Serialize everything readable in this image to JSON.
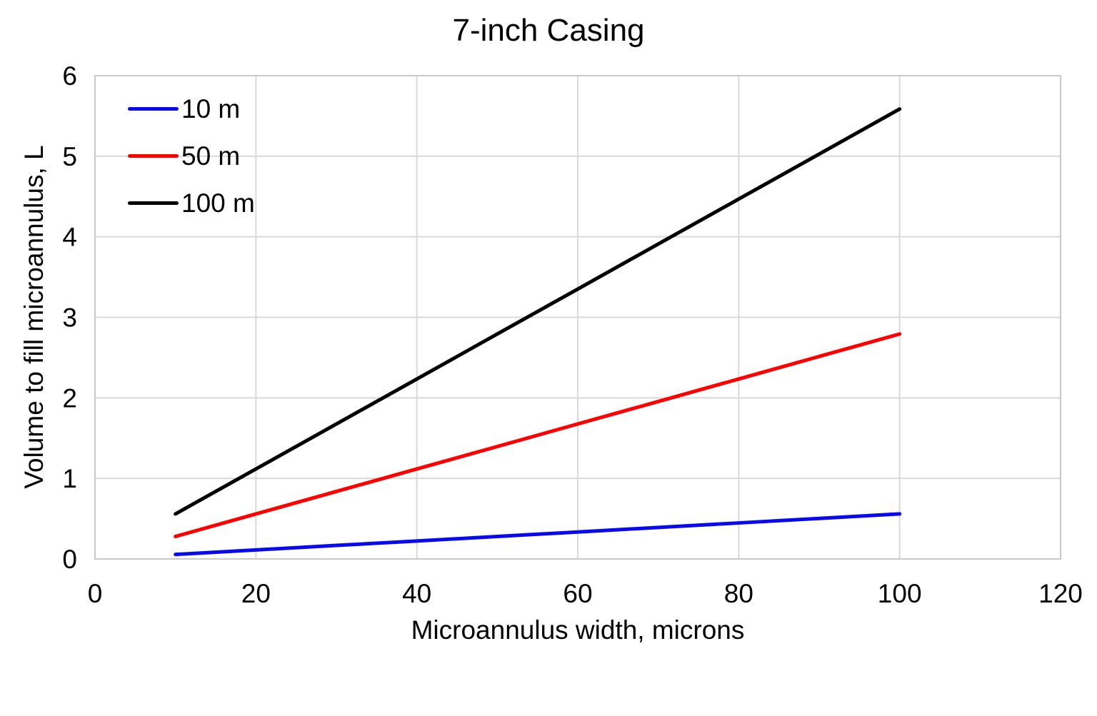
{
  "chart_data": {
    "type": "line",
    "title": "7-inch Casing",
    "xlabel": "Microannulus width, microns",
    "ylabel": "Volume to fill microannulus, L",
    "xlim": [
      0,
      120
    ],
    "ylim": [
      0,
      6
    ],
    "x_ticks": [
      0,
      20,
      40,
      60,
      80,
      100,
      120
    ],
    "y_ticks": [
      0,
      1,
      2,
      3,
      4,
      5,
      6
    ],
    "grid": true,
    "legend_position": "inside-top-left",
    "x": [
      10,
      20,
      30,
      40,
      50,
      60,
      70,
      80,
      90,
      100
    ],
    "series": [
      {
        "name": "10 m",
        "color": "#0909ee",
        "values": [
          0.056,
          0.112,
          0.168,
          0.223,
          0.279,
          0.335,
          0.391,
          0.447,
          0.503,
          0.559
        ]
      },
      {
        "name": "50 m",
        "color": "#fe0000",
        "values": [
          0.279,
          0.559,
          0.838,
          1.117,
          1.396,
          1.676,
          1.955,
          2.234,
          2.514,
          2.793
        ]
      },
      {
        "name": "100 m",
        "color": "#000000",
        "values": [
          0.559,
          1.117,
          1.676,
          2.234,
          2.793,
          3.351,
          3.91,
          4.468,
          5.027,
          5.586
        ]
      }
    ],
    "colors": {
      "gridline": "#d9d9d9",
      "axis_border": "#c9c9c9",
      "text": "#000000",
      "background": "#ffffff"
    }
  }
}
